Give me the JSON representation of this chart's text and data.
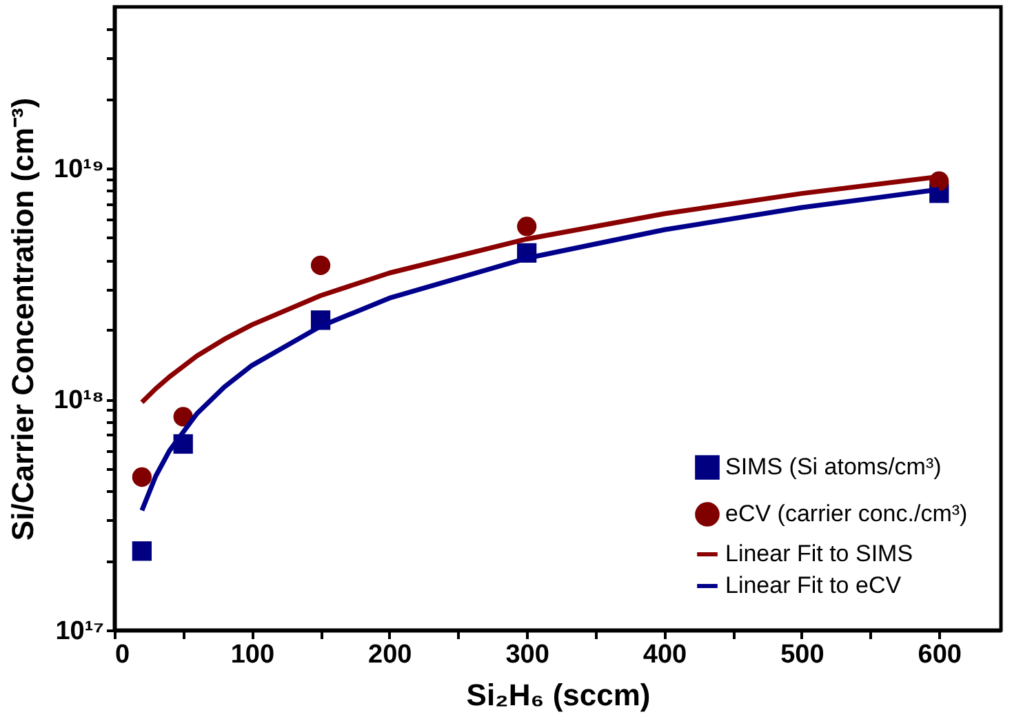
{
  "chart_data": {
    "type": "scatter",
    "xlabel": "Si₂H₆ (sccm)",
    "ylabel": "Si/Carrier Concentration (cm⁻³)",
    "log": "y",
    "grid": false,
    "legend": "bottom right",
    "xlim": [
      0,
      645
    ],
    "xticks": [
      0,
      {
        "value": 50,
        "label": null
      },
      100,
      {
        "value": 150,
        "label": null
      },
      200,
      {
        "value": 250,
        "label": null
      },
      300,
      {
        "value": 350,
        "label": null
      },
      400,
      {
        "value": 450,
        "label": null
      },
      500,
      {
        "value": 550,
        "label": null
      },
      600
    ],
    "ylim": [
      1e+17,
      5e+19
    ],
    "yticks": [
      {
        "value": 1e+17,
        "label": "10¹⁷"
      },
      {
        "value": 2e+17,
        "label": null
      },
      {
        "value": 3e+17,
        "label": null
      },
      {
        "value": 4e+17,
        "label": null
      },
      {
        "value": 5e+17,
        "label": null
      },
      {
        "value": 6e+17,
        "label": null
      },
      {
        "value": 7e+17,
        "label": null
      },
      {
        "value": 8e+17,
        "label": null
      },
      {
        "value": 9e+17,
        "label": null
      },
      {
        "value": 1e+18,
        "label": "10¹⁸"
      },
      {
        "value": 2e+18,
        "label": null
      },
      {
        "value": 3e+18,
        "label": null
      },
      {
        "value": 4e+18,
        "label": null
      },
      {
        "value": 5e+18,
        "label": null
      },
      {
        "value": 6e+18,
        "label": null
      },
      {
        "value": 7e+18,
        "label": null
      },
      {
        "value": 8e+18,
        "label": null
      },
      {
        "value": 9e+18,
        "label": null
      },
      {
        "value": 1e+19,
        "label": "10¹⁹"
      },
      {
        "value": 2e+19,
        "label": null
      },
      {
        "value": 3e+19,
        "label": null
      },
      {
        "value": 4e+19,
        "label": null
      }
    ],
    "series": [
      {
        "name": "SIMS (Si atoms/cm³)",
        "marker": "square",
        "color": "#000080",
        "x": [
          20,
          50,
          150,
          300,
          600
        ],
        "values": [
          2.2e+17,
          6.4e+17,
          2.2e+18,
          4.3e+18,
          7.8e+18
        ]
      },
      {
        "name": "eCV (carrier conc./cm³)",
        "marker": "circle",
        "color": "#800000",
        "x": [
          20,
          50,
          150,
          300,
          600
        ],
        "values": [
          4.6e+17,
          8.4e+17,
          3.8e+18,
          5.6e+18,
          8.8e+18
        ]
      },
      {
        "name": "Linear Fit to SIMS",
        "type": "line",
        "marker": "none",
        "line_style": "solid",
        "color": "#8b0000",
        "x": [
          20,
          30,
          40,
          60,
          80,
          100,
          150,
          200,
          300,
          400,
          500,
          600
        ],
        "values": [
          9.7e+17,
          1.11e+18,
          1.25e+18,
          1.54e+18,
          1.82e+18,
          2.1e+18,
          2.81e+18,
          3.52e+18,
          4.94e+18,
          6.36e+18,
          7.78e+18,
          9.2e+18
        ]
      },
      {
        "name": "Linear Fit to eCV",
        "type": "line",
        "marker": "none",
        "line_style": "solid",
        "color": "#00008b",
        "x": [
          20,
          30,
          40,
          60,
          80,
          100,
          150,
          200,
          300,
          400,
          500,
          600
        ],
        "values": [
          3.3e+17,
          4.64e+17,
          5.98e+17,
          8.66e+17,
          1.13e+18,
          1.4e+18,
          2.07e+18,
          2.74e+18,
          4.08e+18,
          5.42e+18,
          6.76e+18,
          8.1e+18
        ]
      }
    ]
  }
}
